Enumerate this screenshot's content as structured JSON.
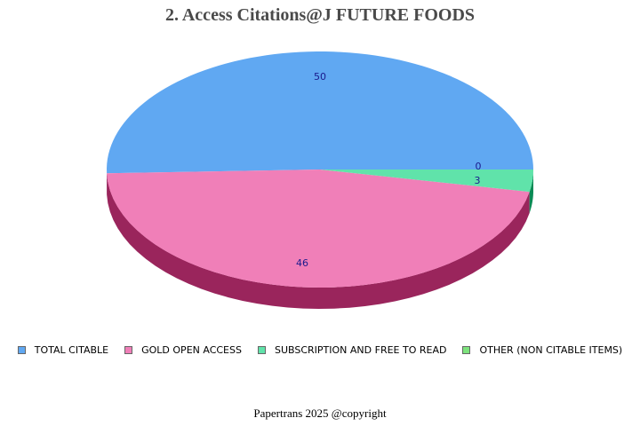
{
  "title": "2. Access Citations@J FUTURE FOODS",
  "footer": "Papertrans 2025 @copyright",
  "colors": {
    "title": "#4a4a4a",
    "label": "#1a1a8c"
  },
  "legend": [
    {
      "label": "TOTAL CITABLE",
      "color": "#60a8f2"
    },
    {
      "label": "GOLD OPEN ACCESS",
      "color": "#f07fb8"
    },
    {
      "label": "SUBSCRIPTION AND FREE TO READ",
      "color": "#60e3aa"
    },
    {
      "label": "OTHER (NON CITABLE ITEMS)",
      "color": "#7de37d"
    }
  ],
  "chart_data": {
    "type": "pie",
    "title": "2. Access Citations@J FUTURE FOODS",
    "style": "3d",
    "categories": [
      "TOTAL CITABLE",
      "GOLD OPEN ACCESS",
      "SUBSCRIPTION AND FREE TO READ",
      "OTHER (NON CITABLE ITEMS)"
    ],
    "values": [
      50,
      46,
      3,
      0
    ],
    "colors": [
      "#60a8f2",
      "#f07fb8",
      "#60e3aa",
      "#7de37d"
    ],
    "side_colors": [
      "#2f6fb5",
      "#9a255c",
      "#0b8a55",
      "#3a9a3a"
    ],
    "legend_position": "bottom",
    "data_labels": [
      "50",
      "46",
      "3",
      "0"
    ]
  }
}
